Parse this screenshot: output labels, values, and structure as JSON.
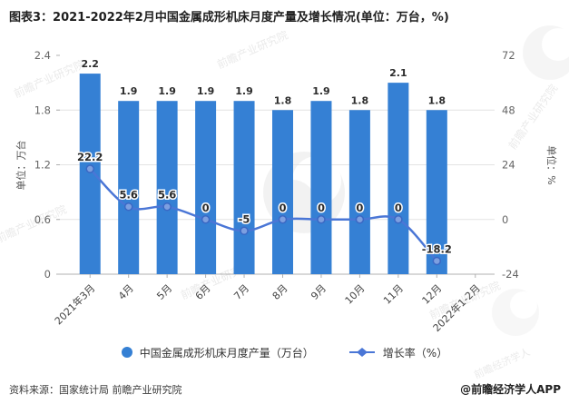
{
  "title": "图表3：2021-2022年2月中国金属成形机床月度产量及增长情况(单位：万台，%)",
  "chart_data": {
    "type": "bar+line",
    "categories": [
      "2021年3月",
      "4月",
      "5月",
      "6月",
      "7月",
      "8月",
      "9月",
      "10月",
      "11月",
      "12月",
      "2022年1-2月"
    ],
    "series": [
      {
        "name": "中国金属成形机床月度产量（万台）",
        "type": "bar",
        "axis": "left",
        "values": [
          2.2,
          1.9,
          1.9,
          1.9,
          1.9,
          1.8,
          1.9,
          1.8,
          2.1,
          1.8,
          null
        ],
        "color": "#3580d4"
      },
      {
        "name": "增长率（%）",
        "type": "line",
        "axis": "right",
        "values": [
          22.2,
          5.6,
          5.6,
          0,
          -5,
          0,
          0,
          0,
          0,
          -18.2,
          null
        ],
        "color": "#4a76d6",
        "marker_fill": "#7d9fe0",
        "marker_stroke": "#3a68c4"
      }
    ],
    "left_axis": {
      "title": "单位：万台",
      "ticks": [
        0,
        0.6,
        1.2,
        1.8,
        2.4
      ],
      "range": [
        0,
        2.4
      ]
    },
    "right_axis": {
      "title": "单位：%",
      "ticks": [
        -24,
        0,
        24,
        48,
        72
      ],
      "range": [
        -24,
        72
      ]
    },
    "gridline_values_right": [
      0,
      24,
      48
    ],
    "grid": true,
    "legend_position": "bottom",
    "colors": {
      "grid": "#e4e4e4",
      "axis": "#b0b0b0",
      "tick_label": "#666666",
      "data_label": "#2b2b2b"
    }
  },
  "legend": {
    "bar_label": "中国金属成形机床月度产量（万台）",
    "line_label": "增长率（%）"
  },
  "footer": {
    "source": "资料来源：国家统计局 前瞻产业研究院",
    "credit": "@前瞻经济学人APP"
  },
  "watermark": {
    "text": "前瞻产业研究院",
    "text2": "前瞻经济学人"
  }
}
